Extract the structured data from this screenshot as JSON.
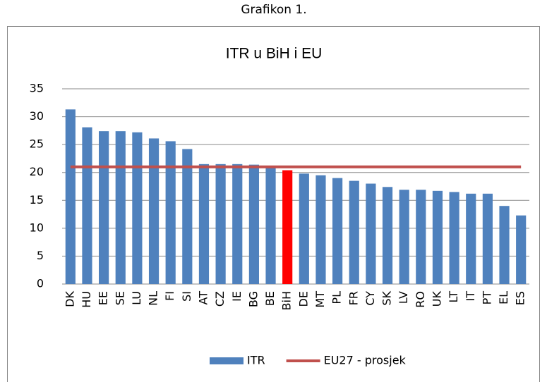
{
  "caption": "Grafikon 1.",
  "chart_data": {
    "type": "bar",
    "title": "ITR u BiH i EU",
    "categories": [
      "DK",
      "HU",
      "EE",
      "SE",
      "LU",
      "NL",
      "FI",
      "SI",
      "AT",
      "CZ",
      "IE",
      "BG",
      "BE",
      "BiH",
      "DE",
      "MT",
      "PL",
      "FR",
      "CY",
      "SK",
      "LV",
      "RO",
      "UK",
      "LT",
      "IT",
      "PT",
      "EL",
      "ES"
    ],
    "series": [
      {
        "name": "ITR",
        "type": "bar",
        "color": "#4f81bd",
        "point_colors": [
          "#4f81bd",
          "#4f81bd",
          "#4f81bd",
          "#4f81bd",
          "#4f81bd",
          "#4f81bd",
          "#4f81bd",
          "#4f81bd",
          "#4f81bd",
          "#4f81bd",
          "#4f81bd",
          "#4f81bd",
          "#4f81bd",
          "#ff0000",
          "#4f81bd",
          "#4f81bd",
          "#4f81bd",
          "#4f81bd",
          "#4f81bd",
          "#4f81bd",
          "#4f81bd",
          "#4f81bd",
          "#4f81bd",
          "#4f81bd",
          "#4f81bd",
          "#4f81bd",
          "#4f81bd",
          "#4f81bd"
        ],
        "values": [
          31.3,
          28.1,
          27.4,
          27.4,
          27.2,
          26.1,
          25.6,
          24.2,
          21.5,
          21.5,
          21.5,
          21.4,
          21.0,
          20.4,
          19.8,
          19.5,
          19.0,
          18.5,
          18.0,
          17.4,
          16.9,
          16.9,
          16.7,
          16.5,
          16.2,
          16.2,
          14.0,
          12.3
        ]
      },
      {
        "name": "EU27 - prosjek",
        "type": "line",
        "color": "#c0504d",
        "values": [
          21,
          21,
          21,
          21,
          21,
          21,
          21,
          21,
          21,
          21,
          21,
          21,
          21,
          21,
          21,
          21,
          21,
          21,
          21,
          21,
          21,
          21,
          21,
          21,
          21,
          21,
          21,
          21
        ]
      }
    ],
    "ylim": [
      0,
      35
    ],
    "yticks": [
      0,
      5,
      10,
      15,
      20,
      25,
      30,
      35
    ],
    "grid": true,
    "legend": "bottom"
  }
}
